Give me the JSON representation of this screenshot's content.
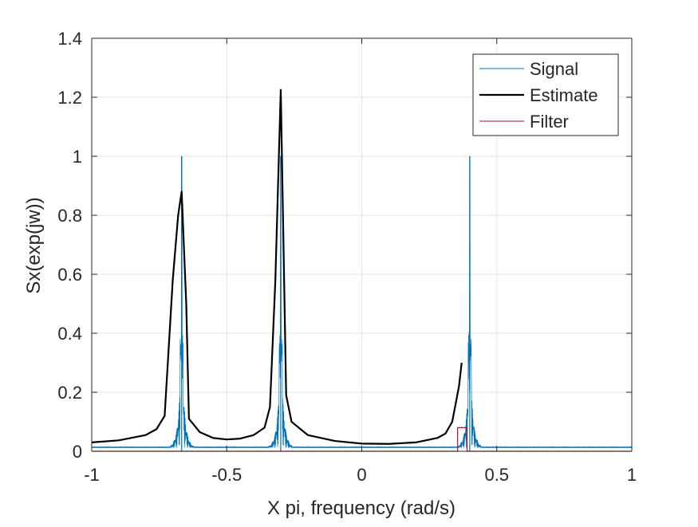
{
  "chart_data": {
    "type": "line",
    "title": "",
    "xlabel": "X pi, frequency (rad/s)",
    "ylabel": "Sx(exp(jw))",
    "xlim": [
      -1,
      1
    ],
    "ylim": [
      0,
      1.4
    ],
    "xticks": [
      -1,
      -0.5,
      0,
      0.5,
      1
    ],
    "xtick_labels": [
      "-1",
      "-0.5",
      "0",
      "0.5",
      "1"
    ],
    "yticks": [
      0,
      0.2,
      0.4,
      0.6,
      0.8,
      1,
      1.2,
      1.4
    ],
    "ytick_labels": [
      "0",
      "0.2",
      "0.4",
      "0.6",
      "0.8",
      "1",
      "1.2",
      "1.4"
    ],
    "grid": true,
    "legend_position": "top-right",
    "series": [
      {
        "name": "Signal",
        "color": "#0072BD",
        "style": "dense line spectrum (sinc sidelobes)",
        "peaks": [
          {
            "x": -0.667,
            "y": 1.0
          },
          {
            "x": -0.3,
            "y": 1.0
          },
          {
            "x": 0.4,
            "y": 1.0
          }
        ],
        "secondary_peak_level": 0.22,
        "noise_floor": 0.012
      },
      {
        "name": "Estimate",
        "color": "#000000",
        "x": [
          -1,
          -0.9,
          -0.8,
          -0.76,
          -0.73,
          -0.7,
          -0.68,
          -0.667,
          -0.65,
          -0.64,
          -0.6,
          -0.55,
          -0.5,
          -0.45,
          -0.4,
          -0.36,
          -0.34,
          -0.32,
          -0.3,
          -0.28,
          -0.26,
          -0.2,
          -0.1,
          0,
          0.1,
          0.2,
          0.28,
          0.31,
          0.335,
          0.36,
          0.37
        ],
        "y": [
          0.03,
          0.037,
          0.055,
          0.075,
          0.12,
          0.58,
          0.8,
          0.88,
          0.5,
          0.11,
          0.065,
          0.045,
          0.04,
          0.043,
          0.055,
          0.08,
          0.15,
          0.58,
          1.225,
          0.19,
          0.1,
          0.055,
          0.035,
          0.026,
          0.025,
          0.03,
          0.045,
          0.06,
          0.1,
          0.22,
          0.3
        ]
      },
      {
        "name": "Filter",
        "color": "#A2142F",
        "x": [
          -1,
          0.355,
          0.355,
          0.39,
          0.39,
          1
        ],
        "y": [
          0,
          0,
          0.08,
          0.08,
          0,
          0
        ]
      }
    ]
  }
}
